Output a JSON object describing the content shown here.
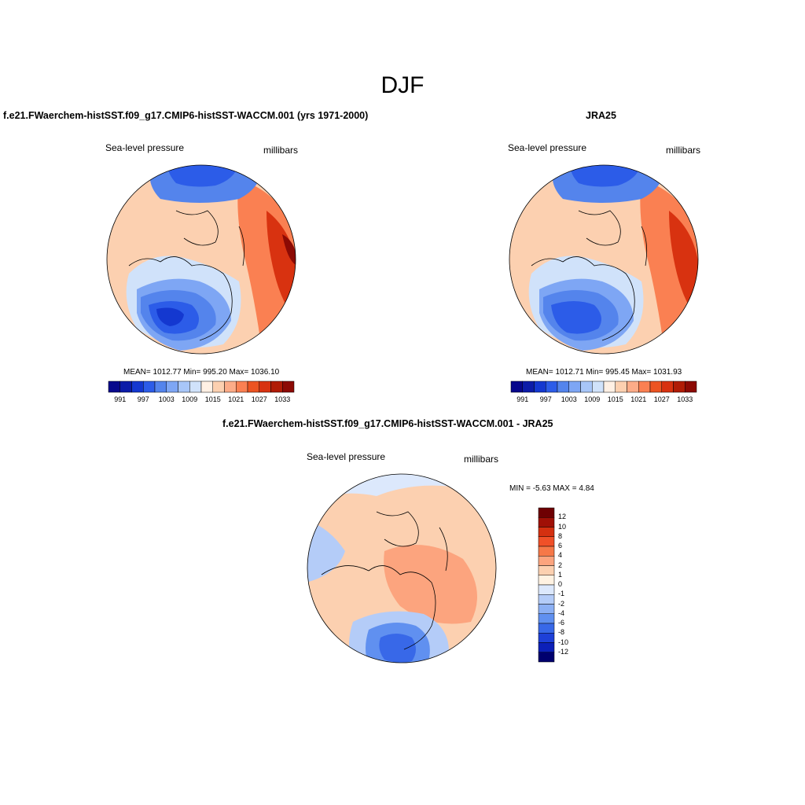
{
  "figure": {
    "title": "DJF"
  },
  "colors": {
    "abs_palette": [
      "#08088c",
      "#0c1ca8",
      "#1438d0",
      "#2c5ce8",
      "#5484ec",
      "#7ea6f4",
      "#a8c6f8",
      "#d0e2fa",
      "#fff0e4",
      "#fcd0b0",
      "#fcac88",
      "#fa8052",
      "#ec5422",
      "#d83210",
      "#b01c06",
      "#8c0a04"
    ],
    "diff_palette": [
      "#00006e",
      "#0c20b8",
      "#1e40d8",
      "#3868e8",
      "#6090f0",
      "#8cb0f4",
      "#b4ccf8",
      "#dce8fc",
      "#fff2e2",
      "#fcd0b0",
      "#fca47e",
      "#f67848",
      "#f05028",
      "#d43010",
      "#a01006",
      "#6e0002"
    ],
    "coast": "#000000"
  },
  "panels": [
    {
      "id": "model",
      "title": "f.e21.FWaerchem-histSST.f09_g17.CMIP6-histSST-WACCM.001 (yrs 1971-2000)",
      "left_label": "Sea-level pressure",
      "right_label": "millibars",
      "stats": "MEAN= 1012.77  Min= 995.20  Max= 1036.10",
      "colorbar_labels": [
        "991",
        "997",
        "1003",
        "1009",
        "1015",
        "1021",
        "1027",
        "1033"
      ]
    },
    {
      "id": "obs",
      "title": "JRA25",
      "left_label": "Sea-level pressure",
      "right_label": "millibars",
      "stats": "MEAN= 1012.71  Min= 995.45  Max= 1031.93",
      "colorbar_labels": [
        "991",
        "997",
        "1003",
        "1009",
        "1015",
        "1021",
        "1027",
        "1033"
      ]
    },
    {
      "id": "diff",
      "title": "f.e21.FWaerchem-histSST.f09_g17.CMIP6-histSST-WACCM.001 - JRA25",
      "left_label": "Sea-level pressure",
      "right_label": "millibars",
      "stats": "MIN =  -5.63 MAX =   4.84",
      "colorbar_labels": [
        "12",
        "10",
        "8",
        "6",
        "4",
        "2",
        "1",
        "0",
        "-1",
        "-2",
        "-4",
        "-6",
        "-8",
        "-10",
        "-12"
      ]
    }
  ]
}
